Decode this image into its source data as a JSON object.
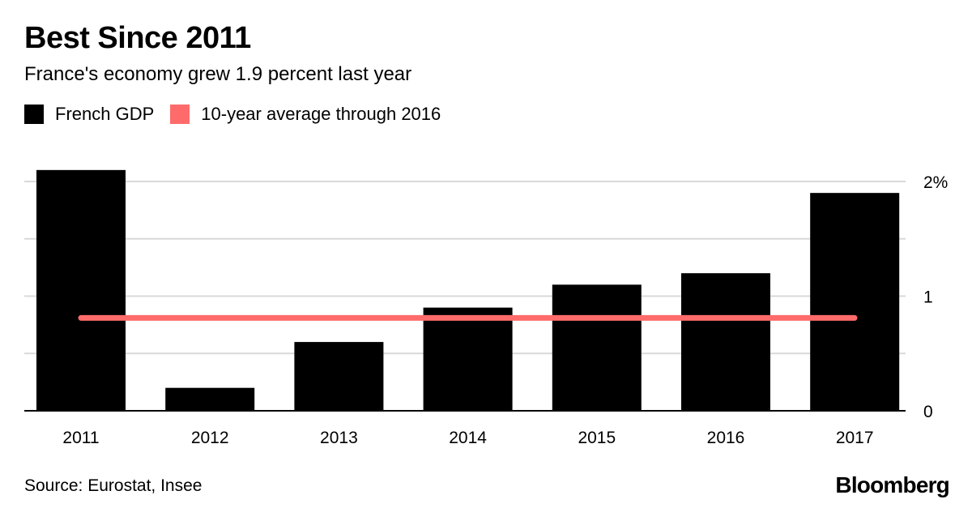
{
  "header": {
    "title": "Best Since 2011",
    "subtitle": "France's economy grew 1.9 percent last year"
  },
  "legend": {
    "items": [
      {
        "label": "French GDP",
        "color": "#000000"
      },
      {
        "label": "10-year average through 2016",
        "color": "#ff6b6b"
      }
    ]
  },
  "footer": {
    "source": "Source: Eurostat, Insee",
    "brand": "Bloomberg"
  },
  "chart_data": {
    "type": "bar",
    "categories": [
      "2011",
      "2012",
      "2013",
      "2014",
      "2015",
      "2016",
      "2017"
    ],
    "series": [
      {
        "name": "French GDP",
        "values": [
          2.1,
          0.2,
          0.6,
          0.9,
          1.1,
          1.2,
          1.9
        ],
        "color": "#000000"
      }
    ],
    "reference_line": {
      "name": "10-year average through 2016",
      "value": 0.81,
      "color": "#ff6b6b"
    },
    "y_ticks": [
      {
        "value": 0,
        "label": "0"
      },
      {
        "value": 1,
        "label": "1"
      },
      {
        "value": 2,
        "label": "2%"
      }
    ],
    "ylim": [
      0,
      2.2
    ],
    "y_axis_side": "right",
    "grid": true
  }
}
